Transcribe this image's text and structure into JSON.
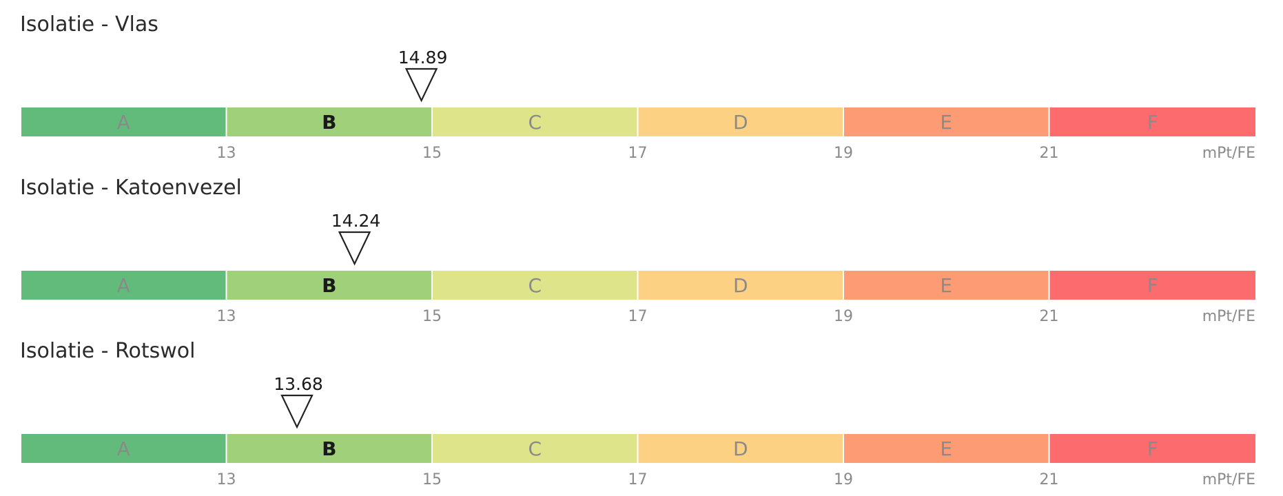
{
  "chart_data": [
    {
      "type": "rating-scale",
      "title": "Isolatie - Vlas",
      "value": 14.89,
      "value_label": "14.89",
      "unit": "mPt/FE",
      "thresholds": [
        13,
        15,
        17,
        19,
        21
      ],
      "threshold_labels": [
        "13",
        "15",
        "17",
        "19",
        "21"
      ],
      "classes": [
        "A",
        "B",
        "C",
        "D",
        "E",
        "F"
      ],
      "active_class": "B"
    },
    {
      "type": "rating-scale",
      "title": "Isolatie - Katoenvezel",
      "value": 14.24,
      "value_label": "14.24",
      "unit": "mPt/FE",
      "thresholds": [
        13,
        15,
        17,
        19,
        21
      ],
      "threshold_labels": [
        "13",
        "15",
        "17",
        "19",
        "21"
      ],
      "classes": [
        "A",
        "B",
        "C",
        "D",
        "E",
        "F"
      ],
      "active_class": "B"
    },
    {
      "type": "rating-scale",
      "title": "Isolatie - Rotswol",
      "value": 13.68,
      "value_label": "13.68",
      "unit": "mPt/FE",
      "thresholds": [
        13,
        15,
        17,
        19,
        21
      ],
      "threshold_labels": [
        "13",
        "15",
        "17",
        "19",
        "21"
      ],
      "classes": [
        "A",
        "B",
        "C",
        "D",
        "E",
        "F"
      ],
      "active_class": "B"
    }
  ],
  "colors": {
    "A": "#62bb7b",
    "B": "#a0d07a",
    "C": "#dde489",
    "D": "#fdd183",
    "E": "#fd9c74",
    "F": "#fc6b6d",
    "label_inactive": "#8a8a8a",
    "label_active": "#1a1a1a",
    "tick_text": "#8a8a8a",
    "title_text": "#2b2b2b",
    "marker_stroke": "#222222"
  }
}
